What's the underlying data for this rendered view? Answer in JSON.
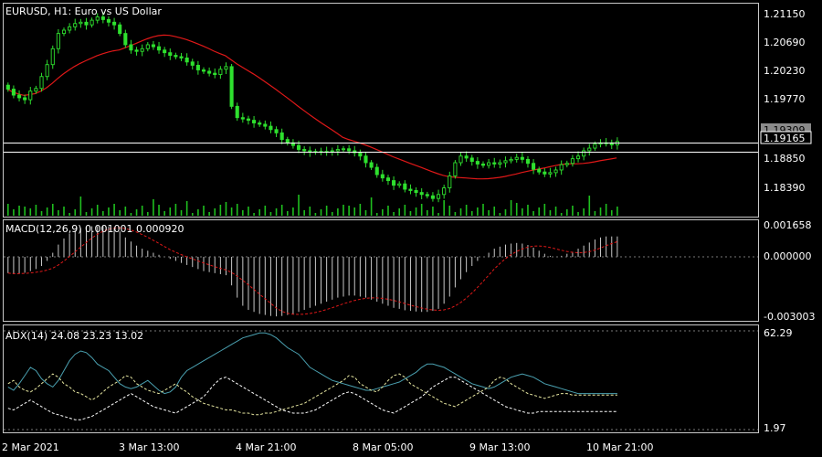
{
  "main_chart": {
    "symbol": "EURUSD",
    "timeframe": "H1",
    "description": "Euro vs US Dollar",
    "price_labels": [
      "1.21150",
      "1.20690",
      "1.20230",
      "1.19770",
      "1.19309",
      "1.19165",
      "1.18850",
      "1.18390"
    ]
  },
  "macd_panel": {
    "header": "MACD(12,26,9) 0.001001 0.000920",
    "axis_labels": [
      "0.001658",
      "0.000000",
      "-0.003003"
    ]
  },
  "adx_panel": {
    "header": "ADX(14) 24.08 23.23 13.02",
    "axis_labels": [
      "62.29",
      "1.97"
    ]
  },
  "time_labels": [
    "2 Mar 2021",
    "3 Mar 13:00",
    "4 Mar 21:00",
    "8 Mar 05:00",
    "9 Mar 13:00",
    "10 Mar 21:00"
  ],
  "colors": {
    "background": "#000000",
    "bull_candle": "#2ee02e",
    "moving_average": "#e01818",
    "volume": "#1fbf1f",
    "macd_histogram": "#c8c8c8",
    "macd_signal": "#e01818",
    "adx": "#4aa0b0",
    "di_plus": "#e6e6a0",
    "di_minus": "#ffffff",
    "grid_frame": "#c8c8c8"
  },
  "chart_data": [
    {
      "type": "candlestick",
      "title": "EURUSD, H1:  Euro vs US Dollar",
      "close": [
        1.2011,
        1.2002,
        1.1998,
        1.1995,
        1.2008,
        1.2012,
        1.203,
        1.2048,
        1.2072,
        1.2095,
        1.21,
        1.2105,
        1.211,
        1.2112,
        1.2108,
        1.2115,
        1.212,
        1.2116,
        1.2112,
        1.2108,
        1.2095,
        1.2078,
        1.207,
        1.2068,
        1.2072,
        1.2078,
        1.2075,
        1.207,
        1.2066,
        1.2062,
        1.206,
        1.2058,
        1.2052,
        1.2047,
        1.204,
        1.2038,
        1.2035,
        1.2033,
        1.2041,
        1.2045,
        1.1985,
        1.1968,
        1.1966,
        1.1964,
        1.196,
        1.1958,
        1.1955,
        1.195,
        1.1945,
        1.1935,
        1.193,
        1.1926,
        1.192,
        1.1918,
        1.1916,
        1.1917,
        1.1916,
        1.1917,
        1.1918,
        1.192,
        1.1921,
        1.1918,
        1.1915,
        1.191,
        1.19,
        1.1893,
        1.1882,
        1.1877,
        1.1873,
        1.1866,
        1.1868,
        1.186,
        1.1858,
        1.1855,
        1.1852,
        1.185,
        1.1846,
        1.1852,
        1.1862,
        1.188,
        1.19,
        1.191,
        1.1907,
        1.1902,
        1.1898,
        1.1896,
        1.19,
        1.1898,
        1.19,
        1.1903,
        1.1905,
        1.1908,
        1.1905,
        1.1899,
        1.189,
        1.1886,
        1.1883,
        1.1885,
        1.1889,
        1.1897,
        1.1899,
        1.1906,
        1.191,
        1.1918,
        1.1922,
        1.1928,
        1.193,
        1.193,
        1.1927,
        1.1932
      ],
      "ma_period": 21,
      "y_ticks": [
        1.2115,
        1.2069,
        1.2023,
        1.1977,
        1.1885,
        1.1839
      ],
      "y_range": [
        1.182,
        1.214
      ],
      "horizontal_lines": [
        1.19309,
        1.19165
      ]
    },
    {
      "type": "bar",
      "title": "MACD(12,26,9)",
      "histogram": [
        -0.0008,
        -0.00085,
        -0.00082,
        -0.00078,
        -0.0007,
        -0.0006,
        -0.00045,
        -0.0002,
        0.0002,
        0.0006,
        0.0009,
        0.00115,
        0.0013,
        0.0014,
        0.00145,
        0.0015,
        0.0015,
        0.0015,
        0.00148,
        0.00143,
        0.00125,
        0.00095,
        0.00075,
        0.00055,
        0.0004,
        0.0003,
        0.0002,
        0.0001,
        0.0,
        -0.0001,
        -0.0002,
        -0.0003,
        -0.0004,
        -0.0005,
        -0.0006,
        -0.0007,
        -0.00075,
        -0.0008,
        -0.00085,
        -0.0009,
        -0.0014,
        -0.002,
        -0.0024,
        -0.0026,
        -0.0027,
        -0.0028,
        -0.00285,
        -0.0029,
        -0.00292,
        -0.0029,
        -0.00285,
        -0.0028,
        -0.0027,
        -0.0026,
        -0.0025,
        -0.0024,
        -0.0023,
        -0.0022,
        -0.0021,
        -0.002,
        -0.00195,
        -0.0019,
        -0.0019,
        -0.00195,
        -0.002,
        -0.0021,
        -0.0022,
        -0.0023,
        -0.0024,
        -0.0025,
        -0.00255,
        -0.00262,
        -0.00265,
        -0.00268,
        -0.0027,
        -0.0027,
        -0.00265,
        -0.00255,
        -0.0023,
        -0.00195,
        -0.0015,
        -0.0011,
        -0.00075,
        -0.00045,
        -0.0002,
        0.0,
        0.0002,
        0.0004,
        0.0005,
        0.0006,
        0.00065,
        0.00068,
        0.00065,
        0.00058,
        0.00045,
        0.0003,
        0.00015,
        5e-05,
        0.0,
        5e-05,
        0.00015,
        0.00025,
        0.0004,
        0.00055,
        0.0007,
        0.00085,
        0.00095,
        0.001,
        0.001,
        0.001
      ],
      "signal_period": 9,
      "y_ticks": [
        0.001658,
        0.0,
        -0.003003
      ],
      "y_range": [
        -0.003003,
        0.001658
      ]
    },
    {
      "type": "line",
      "title": "ADX(14)",
      "series": [
        {
          "values": [
            28,
            26,
            30,
            35,
            40,
            38,
            33,
            30,
            28,
            32,
            38,
            44,
            48,
            50,
            49,
            46,
            42,
            40,
            38,
            34,
            30,
            28,
            27,
            28,
            30,
            32,
            29,
            26,
            24,
            25,
            28,
            34,
            38,
            40,
            42,
            44,
            46,
            48,
            50,
            52,
            54,
            56,
            58,
            59,
            60,
            61,
            61,
            60,
            58,
            55,
            52,
            50,
            48,
            44,
            40,
            38,
            36,
            34,
            32,
            31,
            30,
            29,
            28,
            27,
            26,
            26,
            27,
            28,
            29,
            30,
            31,
            33,
            35,
            37,
            40,
            42,
            42,
            41,
            40,
            38,
            36,
            34,
            32,
            30,
            29,
            28,
            27,
            28,
            30,
            32,
            34,
            35,
            36,
            35,
            34,
            32,
            30,
            29,
            28,
            27,
            26,
            25,
            24,
            24,
            24,
            24,
            24,
            24,
            24,
            24
          ]
        },
        {
          "values": [
            30,
            32,
            28,
            26,
            25,
            27,
            30,
            33,
            36,
            34,
            30,
            28,
            25,
            24,
            22,
            20,
            22,
            25,
            28,
            30,
            32,
            35,
            34,
            30,
            28,
            26,
            25,
            24,
            26,
            28,
            30,
            27,
            25,
            22,
            20,
            18,
            17,
            16,
            15,
            14,
            14,
            13,
            12,
            12,
            11,
            11,
            12,
            12,
            13,
            14,
            15,
            16,
            17,
            18,
            20,
            22,
            24,
            26,
            28,
            30,
            32,
            35,
            34,
            30,
            28,
            26,
            25,
            28,
            32,
            35,
            36,
            34,
            30,
            28,
            26,
            24,
            22,
            20,
            18,
            17,
            16,
            18,
            20,
            22,
            24,
            26,
            28,
            32,
            34,
            33,
            30,
            28,
            26,
            24,
            23,
            22,
            21,
            22,
            23,
            24,
            24,
            23,
            23,
            23,
            23,
            23,
            23,
            23,
            23,
            23
          ]
        },
        {
          "values": [
            15,
            14,
            16,
            18,
            20,
            18,
            16,
            14,
            12,
            11,
            10,
            9,
            8,
            8,
            9,
            10,
            12,
            14,
            16,
            18,
            20,
            22,
            24,
            22,
            20,
            18,
            16,
            15,
            14,
            13,
            12,
            14,
            16,
            18,
            20,
            22,
            26,
            30,
            33,
            34,
            32,
            30,
            28,
            26,
            24,
            22,
            20,
            18,
            16,
            14,
            13,
            12,
            12,
            12,
            13,
            14,
            16,
            18,
            20,
            22,
            24,
            25,
            24,
            22,
            20,
            18,
            16,
            14,
            13,
            12,
            14,
            16,
            18,
            20,
            22,
            25,
            28,
            30,
            32,
            34,
            34,
            32,
            30,
            28,
            26,
            24,
            22,
            20,
            18,
            16,
            15,
            14,
            13,
            12,
            12,
            13,
            13,
            13,
            13,
            13,
            13,
            13,
            13,
            13,
            13,
            13,
            13,
            13,
            13,
            13
          ]
        }
      ],
      "y_range": [
        1.97,
        62.29
      ],
      "y_ticks": [
        62.29,
        1.97
      ]
    }
  ]
}
